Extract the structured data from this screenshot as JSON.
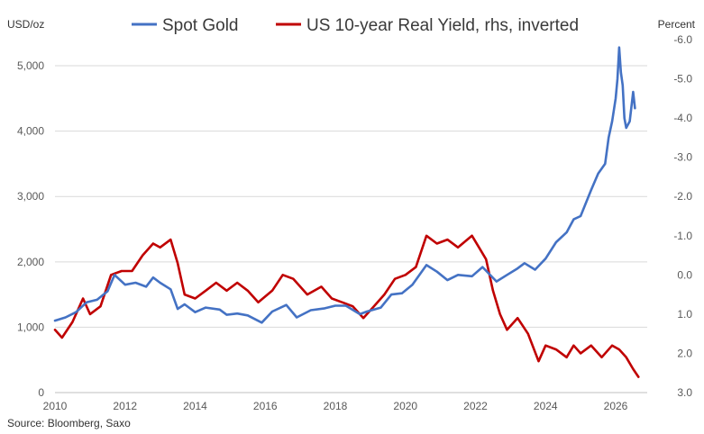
{
  "chart_data": {
    "type": "line",
    "left_unit": "USD/oz",
    "right_unit": "Percent",
    "source": "Source: Bloomberg, Saxo",
    "x_range": [
      2010,
      2026.9
    ],
    "x_ticks": [
      {
        "value": 2010,
        "label": "2010"
      },
      {
        "value": 2012,
        "label": "2012"
      },
      {
        "value": 2014,
        "label": "2014"
      },
      {
        "value": 2016,
        "label": "2016"
      },
      {
        "value": 2018,
        "label": "2018"
      },
      {
        "value": 2020,
        "label": "2020"
      },
      {
        "value": 2022,
        "label": "2022"
      },
      {
        "value": 2024,
        "label": "2024"
      },
      {
        "value": 2026,
        "label": "2026"
      }
    ],
    "y_left": {
      "range": [
        0,
        5400
      ],
      "ticks": [
        {
          "value": 0,
          "label": "0"
        },
        {
          "value": 1000,
          "label": "1,000"
        },
        {
          "value": 2000,
          "label": "2,000"
        },
        {
          "value": 3000,
          "label": "3,000"
        },
        {
          "value": 4000,
          "label": "4,000"
        },
        {
          "value": 5000,
          "label": "5,000"
        }
      ]
    },
    "y_right": {
      "inverted": true,
      "range": [
        3.0,
        -6.0
      ],
      "ticks": [
        {
          "value": -6.0,
          "label": "-6.0"
        },
        {
          "value": -5.0,
          "label": "-5.0"
        },
        {
          "value": -4.0,
          "label": "-4.0"
        },
        {
          "value": -3.0,
          "label": "-3.0"
        },
        {
          "value": -2.0,
          "label": "-2.0"
        },
        {
          "value": -1.0,
          "label": "-1.0"
        },
        {
          "value": 0.0,
          "label": "0.0"
        },
        {
          "value": 1.0,
          "label": "1.0"
        },
        {
          "value": 2.0,
          "label": "2.0"
        },
        {
          "value": 3.0,
          "label": "3.0"
        }
      ]
    },
    "grid": "horizontal",
    "legend_position": "top-center",
    "series": [
      {
        "name": "Spot Gold",
        "axis": "left",
        "color": "#4472c4",
        "points": [
          [
            2010.0,
            1100
          ],
          [
            2010.3,
            1150
          ],
          [
            2010.6,
            1230
          ],
          [
            2010.9,
            1380
          ],
          [
            2011.2,
            1420
          ],
          [
            2011.5,
            1550
          ],
          [
            2011.7,
            1800
          ],
          [
            2012.0,
            1650
          ],
          [
            2012.3,
            1680
          ],
          [
            2012.6,
            1620
          ],
          [
            2012.8,
            1760
          ],
          [
            2013.0,
            1680
          ],
          [
            2013.3,
            1580
          ],
          [
            2013.5,
            1280
          ],
          [
            2013.7,
            1350
          ],
          [
            2014.0,
            1230
          ],
          [
            2014.3,
            1300
          ],
          [
            2014.7,
            1270
          ],
          [
            2014.9,
            1190
          ],
          [
            2015.2,
            1210
          ],
          [
            2015.5,
            1180
          ],
          [
            2015.9,
            1070
          ],
          [
            2016.2,
            1240
          ],
          [
            2016.6,
            1340
          ],
          [
            2016.9,
            1150
          ],
          [
            2017.3,
            1260
          ],
          [
            2017.7,
            1290
          ],
          [
            2018.0,
            1330
          ],
          [
            2018.3,
            1330
          ],
          [
            2018.7,
            1200
          ],
          [
            2018.9,
            1240
          ],
          [
            2019.3,
            1300
          ],
          [
            2019.6,
            1500
          ],
          [
            2019.9,
            1520
          ],
          [
            2020.2,
            1650
          ],
          [
            2020.6,
            1950
          ],
          [
            2020.9,
            1850
          ],
          [
            2021.2,
            1720
          ],
          [
            2021.5,
            1800
          ],
          [
            2021.9,
            1780
          ],
          [
            2022.2,
            1920
          ],
          [
            2022.6,
            1700
          ],
          [
            2022.9,
            1800
          ],
          [
            2023.2,
            1900
          ],
          [
            2023.4,
            1980
          ],
          [
            2023.7,
            1880
          ],
          [
            2024.0,
            2050
          ],
          [
            2024.3,
            2300
          ],
          [
            2024.6,
            2450
          ],
          [
            2024.8,
            2650
          ],
          [
            2025.0,
            2700
          ],
          [
            2025.3,
            3100
          ],
          [
            2025.5,
            3350
          ],
          [
            2025.7,
            3500
          ],
          [
            2025.8,
            3900
          ],
          [
            2025.9,
            4150
          ],
          [
            2026.0,
            4500
          ],
          [
            2026.05,
            4800
          ],
          [
            2026.1,
            5280
          ],
          [
            2026.15,
            4900
          ],
          [
            2026.2,
            4700
          ],
          [
            2026.25,
            4200
          ],
          [
            2026.3,
            4050
          ],
          [
            2026.4,
            4150
          ],
          [
            2026.5,
            4600
          ],
          [
            2026.55,
            4350
          ]
        ]
      },
      {
        "name": "US 10-year Real Yield, rhs, inverted",
        "axis": "right",
        "color": "#c00000",
        "points": [
          [
            2010.0,
            1.4
          ],
          [
            2010.2,
            1.6
          ],
          [
            2010.5,
            1.2
          ],
          [
            2010.8,
            0.6
          ],
          [
            2011.0,
            1.0
          ],
          [
            2011.3,
            0.8
          ],
          [
            2011.6,
            0.0
          ],
          [
            2011.9,
            -0.1
          ],
          [
            2012.2,
            -0.1
          ],
          [
            2012.5,
            -0.5
          ],
          [
            2012.8,
            -0.8
          ],
          [
            2013.0,
            -0.7
          ],
          [
            2013.3,
            -0.9
          ],
          [
            2013.5,
            -0.3
          ],
          [
            2013.7,
            0.5
          ],
          [
            2014.0,
            0.6
          ],
          [
            2014.3,
            0.4
          ],
          [
            2014.6,
            0.2
          ],
          [
            2014.9,
            0.4
          ],
          [
            2015.2,
            0.2
          ],
          [
            2015.5,
            0.4
          ],
          [
            2015.8,
            0.7
          ],
          [
            2016.2,
            0.4
          ],
          [
            2016.5,
            0.0
          ],
          [
            2016.8,
            0.1
          ],
          [
            2017.2,
            0.5
          ],
          [
            2017.6,
            0.3
          ],
          [
            2017.9,
            0.6
          ],
          [
            2018.2,
            0.7
          ],
          [
            2018.5,
            0.8
          ],
          [
            2018.8,
            1.1
          ],
          [
            2019.1,
            0.8
          ],
          [
            2019.4,
            0.5
          ],
          [
            2019.7,
            0.1
          ],
          [
            2020.0,
            0.0
          ],
          [
            2020.3,
            -0.2
          ],
          [
            2020.6,
            -1.0
          ],
          [
            2020.9,
            -0.8
          ],
          [
            2021.2,
            -0.9
          ],
          [
            2021.5,
            -0.7
          ],
          [
            2021.9,
            -1.0
          ],
          [
            2022.1,
            -0.7
          ],
          [
            2022.3,
            -0.4
          ],
          [
            2022.5,
            0.4
          ],
          [
            2022.7,
            1.0
          ],
          [
            2022.9,
            1.4
          ],
          [
            2023.2,
            1.1
          ],
          [
            2023.5,
            1.5
          ],
          [
            2023.8,
            2.2
          ],
          [
            2024.0,
            1.8
          ],
          [
            2024.3,
            1.9
          ],
          [
            2024.6,
            2.1
          ],
          [
            2024.8,
            1.8
          ],
          [
            2025.0,
            2.0
          ],
          [
            2025.3,
            1.8
          ],
          [
            2025.6,
            2.1
          ],
          [
            2025.9,
            1.8
          ],
          [
            2026.1,
            1.9
          ],
          [
            2026.3,
            2.1
          ],
          [
            2026.5,
            2.4
          ],
          [
            2026.65,
            2.6
          ]
        ]
      }
    ]
  }
}
